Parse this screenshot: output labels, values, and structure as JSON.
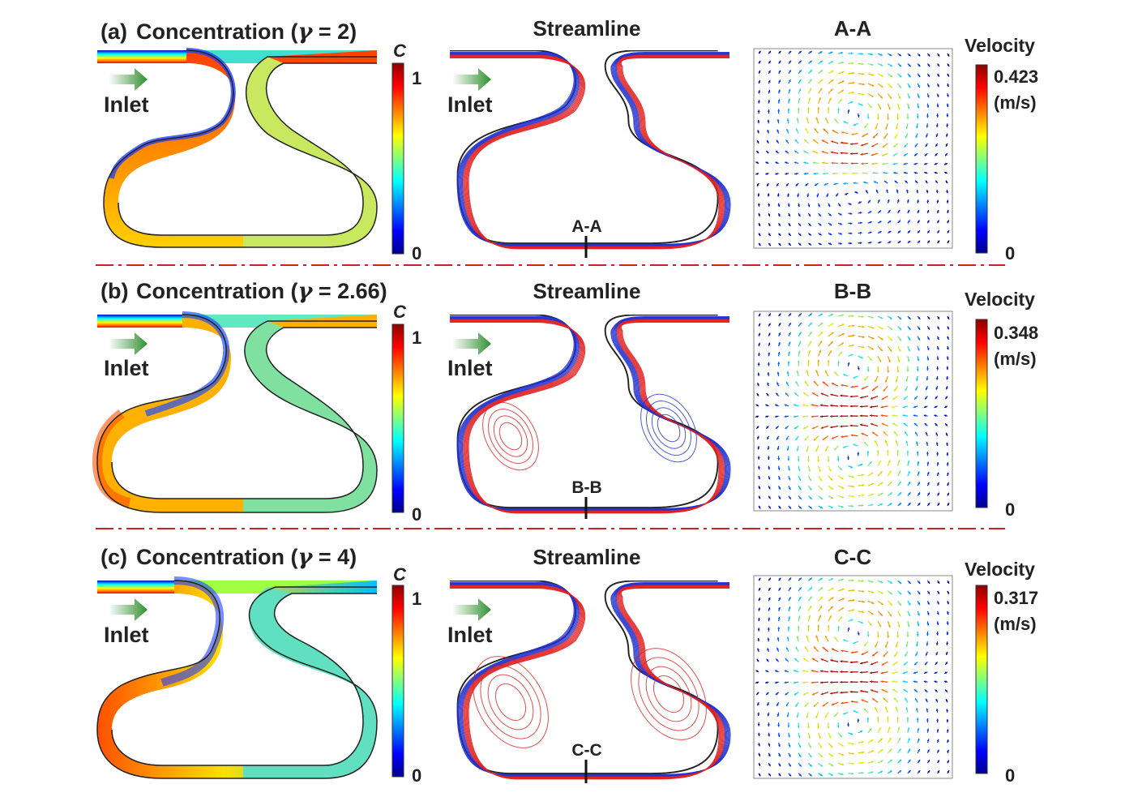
{
  "rows": [
    {
      "tag": "(a)",
      "title_pre": "Concentration (",
      "gamma_symbol": "γ",
      "title_value": " = 2)",
      "gamma": 2,
      "conc_scale": {
        "symbol": "C",
        "max": "1",
        "min": "0"
      },
      "inlet_label": "Inlet",
      "streamline_title": "Streamline",
      "section_label": "A-A",
      "section_title": "A-A",
      "velocity": {
        "label": "Velocity",
        "max": "0.423",
        "unit": "(m/s)",
        "min": "0"
      }
    },
    {
      "tag": "(b)",
      "title_pre": "Concentration (",
      "gamma_symbol": "γ",
      "title_value": " = 2.66)",
      "gamma": 2.66,
      "conc_scale": {
        "symbol": "C",
        "max": "1",
        "min": "0"
      },
      "inlet_label": "Inlet",
      "streamline_title": "Streamline",
      "section_label": "B-B",
      "section_title": "B-B",
      "velocity": {
        "label": "Velocity",
        "max": "0.348",
        "unit": "(m/s)",
        "min": "0"
      }
    },
    {
      "tag": "(c)",
      "title_pre": "Concentration (",
      "gamma_symbol": "γ",
      "title_value": " = 4)",
      "gamma": 4,
      "conc_scale": {
        "symbol": "C",
        "max": "1",
        "min": "0"
      },
      "inlet_label": "Inlet",
      "streamline_title": "Streamline",
      "section_label": "C-C",
      "section_title": "C-C",
      "velocity": {
        "label": "Velocity",
        "max": "0.317",
        "unit": "(m/s)",
        "min": "0"
      }
    }
  ],
  "colors": {
    "separator": "#cc2222",
    "stream_red": "#e02020",
    "stream_blue": "#2030d0",
    "outline": "#222222",
    "arrow": "#3a9a3a"
  },
  "colormap": [
    "#00008f",
    "#0000ff",
    "#00ffff",
    "#ffff00",
    "#ff0000",
    "#8f0000"
  ]
}
